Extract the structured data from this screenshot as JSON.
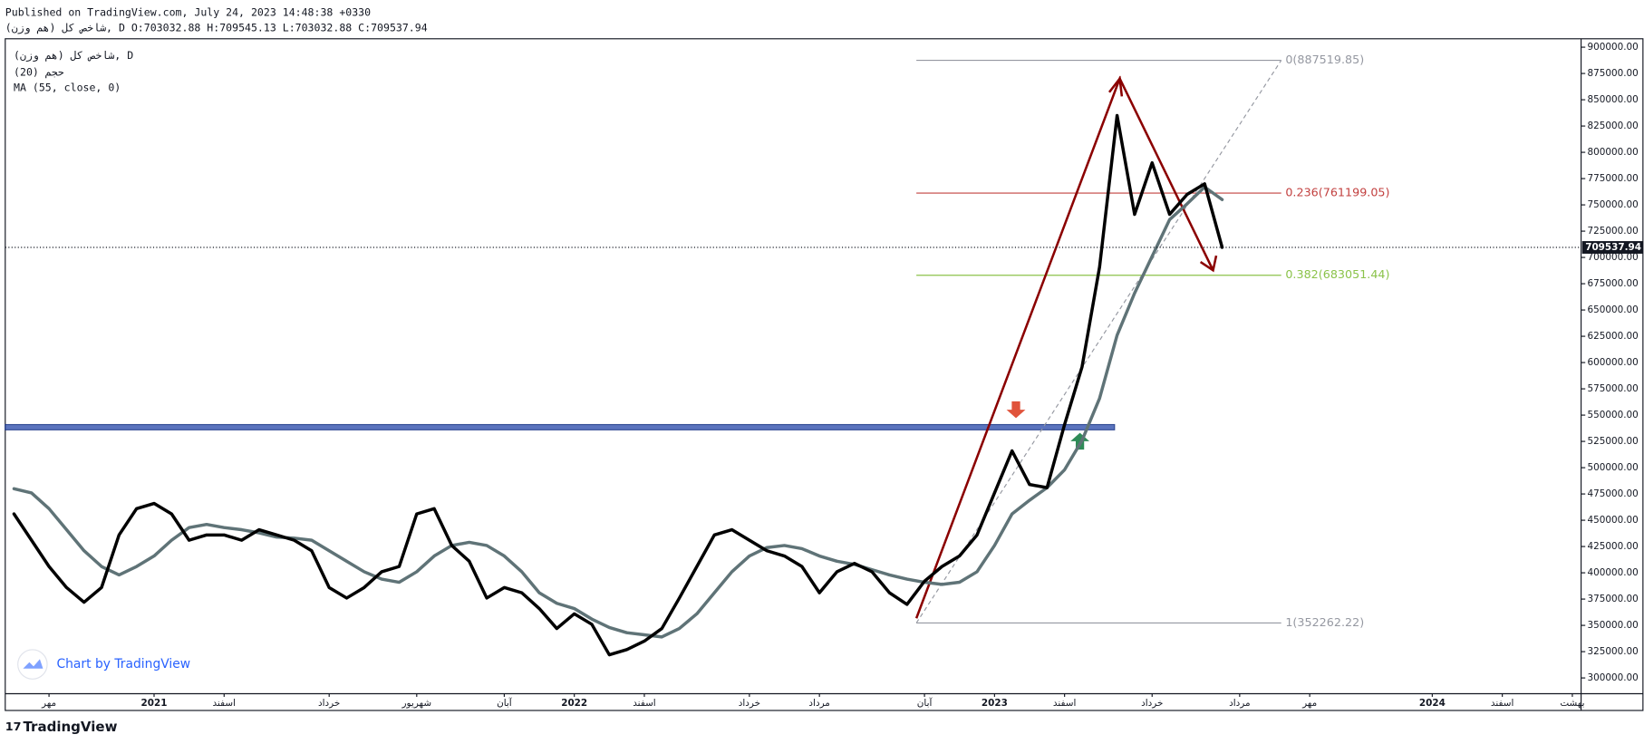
{
  "header": {
    "published": "Published on TradingView.com, July 24, 2023 14:48:38 +0330",
    "symbol_line": "شاخص کل (هم وزن), D O:703032.88 H:709545.13 L:703032.88 C:709537.94"
  },
  "watermark": "Chart by TradingView",
  "footer": "TradingView",
  "chart_data": {
    "type": "line",
    "indicators": [
      "حجم (20)"
    ],
    "categories": [
      null,
      null,
      "مهر",
      null,
      null,
      null,
      null,
      null,
      "2021",
      null,
      null,
      null,
      "اسفند",
      null,
      null,
      null,
      null,
      null,
      "خرداد",
      null,
      null,
      null,
      null,
      "شهریور",
      null,
      null,
      null,
      null,
      "آبان",
      null,
      null,
      null,
      "2022",
      null,
      null,
      null,
      "اسفند",
      null,
      null,
      null,
      null,
      null,
      "خرداد",
      null,
      null,
      null,
      "مرداد",
      null,
      null,
      null,
      null,
      null,
      "آبان",
      null,
      null,
      null,
      "2023",
      null,
      null,
      null,
      "اسفند",
      null,
      null,
      null,
      null,
      "خرداد",
      null,
      null,
      null,
      null,
      "مرداد",
      null,
      null,
      null,
      "مهر",
      null,
      null,
      null,
      null,
      null,
      null,
      "2024",
      null,
      null,
      null,
      "اسفند",
      null,
      null,
      null,
      "بهشت"
    ],
    "series": [
      {
        "name": "شاخص کل (هم وزن), D",
        "color": "#000000",
        "values": [
          456000,
          431000,
          406000,
          386000,
          372000,
          386000,
          436000,
          461000,
          466000,
          456000,
          431000,
          436000,
          436000,
          431000,
          441000,
          436000,
          431000,
          421000,
          386000,
          376000,
          386000,
          401000,
          406000,
          456000,
          461000,
          426000,
          411000,
          376000,
          386000,
          381000,
          366000,
          347000,
          361000,
          351000,
          322000,
          327000,
          335000,
          347000,
          376000,
          406000,
          436000,
          441000,
          431000,
          421000,
          416000,
          406000,
          381000,
          401000,
          409000,
          401000,
          381000,
          370000,
          392000,
          406000,
          416000,
          436000,
          476000,
          516000,
          484000,
          481000,
          541000,
          596000,
          691000,
          835000,
          741000,
          790000,
          741000,
          760000,
          770000,
          709537.94,
          null,
          null,
          null,
          null,
          null,
          null,
          null,
          null,
          null,
          null,
          null,
          null,
          null,
          null,
          null,
          null,
          null,
          null,
          null,
          null
        ]
      },
      {
        "name": "MA (55, close, 0)",
        "color": "#5f7377",
        "values": [
          480000,
          476000,
          461000,
          441000,
          421000,
          406000,
          398000,
          406000,
          416000,
          431000,
          443000,
          446000,
          443000,
          441000,
          438000,
          434000,
          433000,
          431000,
          421000,
          411000,
          401000,
          394000,
          391000,
          401000,
          416000,
          426000,
          429000,
          426000,
          416000,
          401000,
          381000,
          371000,
          366000,
          356000,
          348000,
          343000,
          341000,
          339000,
          347000,
          361000,
          381000,
          401000,
          416000,
          424000,
          426000,
          423000,
          416000,
          411000,
          408000,
          403000,
          398000,
          394000,
          391000,
          389000,
          391000,
          401000,
          426000,
          456000,
          469000,
          481000,
          498000,
          526000,
          566000,
          626000,
          666000,
          701000,
          736000,
          751000,
          767000,
          755000,
          null,
          null,
          null,
          null,
          null,
          null,
          null,
          null,
          null,
          null,
          null,
          null,
          null,
          null,
          null,
          null,
          null,
          null,
          null,
          null
        ]
      }
    ],
    "ylim": [
      285000,
      908000
    ],
    "yticks": [
      {
        "value": 300000,
        "label": "300000.00"
      },
      {
        "value": 325000,
        "label": "325000.00"
      },
      {
        "value": 350000,
        "label": "350000.00"
      },
      {
        "value": 375000,
        "label": "375000.00"
      },
      {
        "value": 400000,
        "label": "400000.00"
      },
      {
        "value": 425000,
        "label": "425000.00"
      },
      {
        "value": 450000,
        "label": "450000.00"
      },
      {
        "value": 475000,
        "label": "475000.00"
      },
      {
        "value": 500000,
        "label": "500000.00"
      },
      {
        "value": 525000,
        "label": "525000.00"
      },
      {
        "value": 550000,
        "label": "550000.00"
      },
      {
        "value": 575000,
        "label": "575000.00"
      },
      {
        "value": 600000,
        "label": "600000.00"
      },
      {
        "value": 625000,
        "label": "625000.00"
      },
      {
        "value": 650000,
        "label": "650000.00"
      },
      {
        "value": 675000,
        "label": "675000.00"
      },
      {
        "value": 700000,
        "label": "700000.00"
      },
      {
        "value": 725000,
        "label": "725000.00"
      },
      {
        "value": 750000,
        "label": "750000.00"
      },
      {
        "value": 775000,
        "label": "775000.00"
      },
      {
        "value": 800000,
        "label": "800000.00"
      },
      {
        "value": 825000,
        "label": "825000.00"
      },
      {
        "value": 850000,
        "label": "850000.00"
      },
      {
        "value": 875000,
        "label": "875000.00"
      },
      {
        "value": 900000,
        "label": "900000.00"
      }
    ],
    "grid": false,
    "last_price": 709537.94,
    "fib_levels": [
      {
        "value": 887519.85,
        "label": "0(887519.85)",
        "color": "#9598a1"
      },
      {
        "value": 761199.05,
        "label": "0.236(761199.05)",
        "color": "#c2403f"
      },
      {
        "value": 683051.44,
        "label": "0.382(683051.44)",
        "color": "#8bc34a"
      },
      {
        "value": 352262.22,
        "label": "1(352262.22)",
        "color": "#9598a1"
      }
    ],
    "zone": {
      "from": 536000,
      "to": 541000,
      "color": "#4a66b8"
    }
  }
}
